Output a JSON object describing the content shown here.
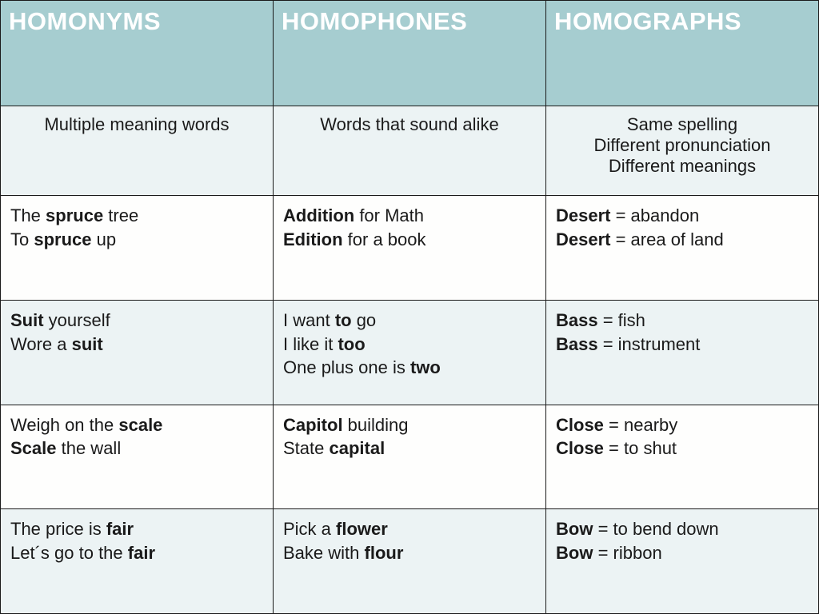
{
  "table": {
    "type": "table",
    "columns": 3,
    "col_widths": [
      "33.3%",
      "33.3%",
      "33.4%"
    ],
    "header_bg": "#a6cdd0",
    "header_text_color": "#ffffff",
    "header_fontsize": 31,
    "def_bg": "#ecf3f4",
    "row_odd_bg": "#fefefd",
    "row_even_bg": "#ecf3f4",
    "border_color": "#1a1a1a",
    "body_fontsize": 22,
    "headers": [
      "HOMONYMS",
      "HOMOPHONES",
      "HOMOGRAPHS"
    ],
    "definitions": [
      "Multiple meaning words",
      "Words that sound alike",
      "Same spelling<br>Different pronunciation<br>Different meanings"
    ],
    "rows": [
      [
        "The <b>spruce</b> tree<br>To <b>spruce</b> up",
        "<b>Addition</b> for Math<br><b>Edition</b> for a book",
        "<b>Desert</b> = abandon<br><b>Desert</b> = area of land"
      ],
      [
        "<b>Suit</b> yourself<br>Wore a <b>suit</b>",
        "I want <b>to</b> go<br>I like it <b>too</b><br>One plus one is <b>two</b>",
        "<b>Bass</b> = fish<br><b>Bass</b> = instrument"
      ],
      [
        "Weigh on the <b>scale</b><br><b>Scale</b> the wall",
        "<b>Capitol</b> building<br>State <b>capital</b>",
        "<b>Close</b> = nearby<br><b>Close</b> = to shut"
      ],
      [
        "The price is <b>fair</b><br>Let´s go to the <b>fair</b>",
        "Pick a <b>flower</b><br>Bake with <b>flour</b>",
        "<b>Bow</b> = to bend down<br><b>Bow</b> = ribbon"
      ]
    ]
  }
}
